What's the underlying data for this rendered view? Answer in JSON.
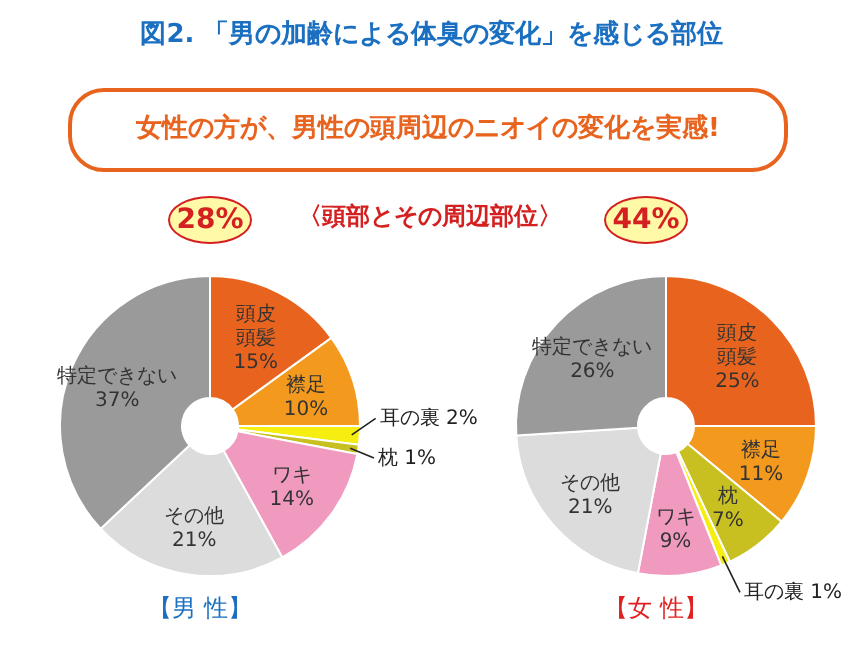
{
  "chart_data": [
    {
      "type": "donut",
      "title": "図2. 「男の加齢による体臭の変化」を感じる部位",
      "subtitle": "女性の方が、男性の頭周辺のニオイの変化を実感!",
      "xlabel": "【男 性】",
      "annotations": [
        "28%",
        "〈頭部とその周辺部位〉"
      ],
      "categories": [
        "頭皮頭髪",
        "襟足",
        "耳の裏",
        "枕",
        "ワキ",
        "その他",
        "特定できない"
      ],
      "values": [
        15,
        10,
        2,
        1,
        14,
        21,
        37
      ],
      "value_labels": [
        "15%",
        "10%",
        "2%",
        "1%",
        "14%",
        "21%",
        "37%"
      ],
      "colors": [
        "#e8641e",
        "#f39a1e",
        "#f5ee10",
        "#c8c020",
        "#f09ac0",
        "#dcdcdc",
        "#9a9a9a"
      ]
    },
    {
      "type": "donut",
      "xlabel": "【女 性】",
      "annotations": [
        "44%"
      ],
      "categories": [
        "頭皮頭髪",
        "襟足",
        "枕",
        "耳の裏",
        "ワキ",
        "その他",
        "特定できない"
      ],
      "values": [
        25,
        11,
        7,
        1,
        9,
        21,
        26
      ],
      "value_labels": [
        "25%",
        "11%",
        "7%",
        "1%",
        "9%",
        "21%",
        "26%"
      ],
      "colors": [
        "#e8641e",
        "#f39a1e",
        "#c8c020",
        "#f5ee10",
        "#f09ac0",
        "#dcdcdc",
        "#9a9a9a"
      ]
    }
  ]
}
